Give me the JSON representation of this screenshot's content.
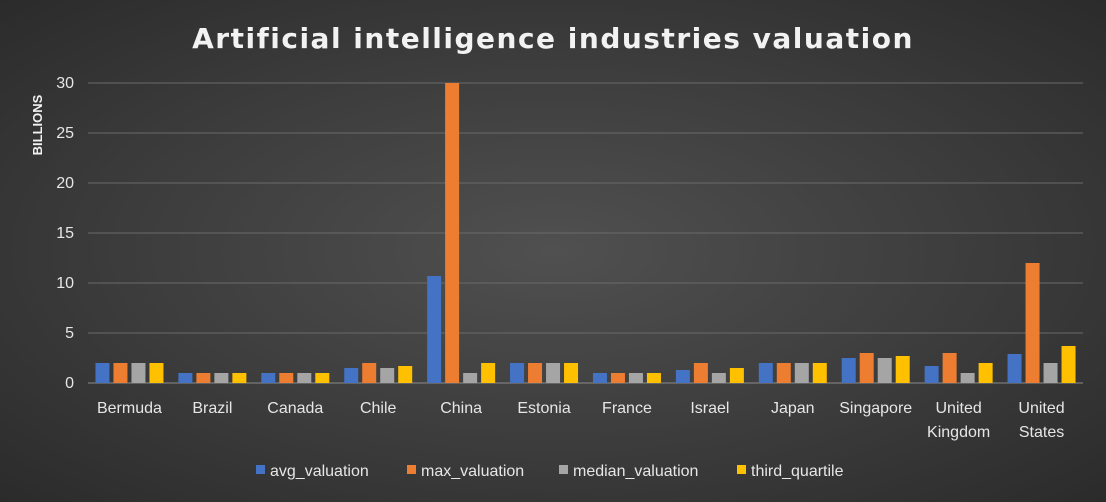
{
  "chart_data": {
    "type": "bar",
    "title": "Artificial intelligence industries valuation",
    "ylabel": "BILLIONS",
    "xlabel": "",
    "ylim": [
      0,
      30
    ],
    "yticks": [
      0,
      5,
      10,
      15,
      20,
      25,
      30
    ],
    "grid": true,
    "legend_position": "bottom",
    "categories": [
      [
        "Bermuda"
      ],
      [
        "Brazil"
      ],
      [
        "Canada"
      ],
      [
        "Chile"
      ],
      [
        "China"
      ],
      [
        "Estonia"
      ],
      [
        "France"
      ],
      [
        "Israel"
      ],
      [
        "Japan"
      ],
      [
        "Singapore"
      ],
      [
        "United",
        "Kingdom"
      ],
      [
        "United",
        "States"
      ]
    ],
    "series": [
      {
        "name": "avg_valuation",
        "color": "#4472C4",
        "values": [
          2,
          1,
          1,
          1.5,
          10.7,
          2,
          1,
          1.3,
          2,
          2.5,
          1.7,
          2.9
        ]
      },
      {
        "name": "max_valuation",
        "color": "#ED7D31",
        "values": [
          2,
          1,
          1,
          2,
          30,
          2,
          1,
          2,
          2,
          3,
          3,
          12
        ]
      },
      {
        "name": "median_valuation",
        "color": "#A5A5A5",
        "values": [
          2,
          1,
          1,
          1.5,
          1,
          2,
          1,
          1,
          2,
          2.5,
          1,
          2
        ]
      },
      {
        "name": "third_quartile",
        "color": "#FFC000",
        "values": [
          2,
          1,
          1,
          1.7,
          2,
          2,
          1,
          1.5,
          2,
          2.7,
          2,
          3.7
        ]
      }
    ]
  }
}
